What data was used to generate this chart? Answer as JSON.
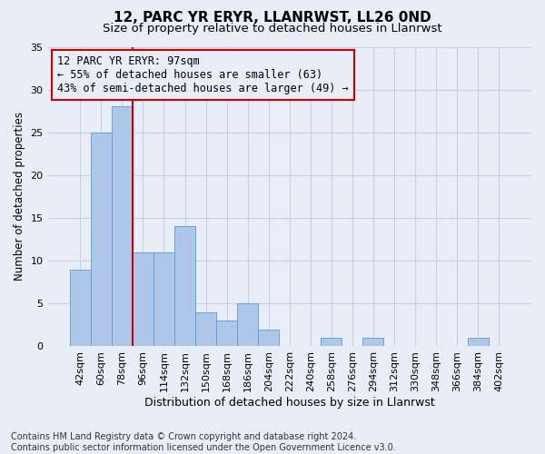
{
  "title1": "12, PARC YR ERYR, LLANRWST, LL26 0ND",
  "title2": "Size of property relative to detached houses in Llanrwst",
  "xlabel": "Distribution of detached houses by size in Llanrwst",
  "ylabel": "Number of detached properties",
  "categories": [
    "42sqm",
    "60sqm",
    "78sqm",
    "96sqm",
    "114sqm",
    "132sqm",
    "150sqm",
    "168sqm",
    "186sqm",
    "204sqm",
    "222sqm",
    "240sqm",
    "258sqm",
    "276sqm",
    "294sqm",
    "312sqm",
    "330sqm",
    "348sqm",
    "366sqm",
    "384sqm",
    "402sqm"
  ],
  "values": [
    9,
    25,
    28,
    11,
    11,
    14,
    4,
    3,
    5,
    2,
    0,
    0,
    1,
    0,
    1,
    0,
    0,
    0,
    0,
    1,
    0
  ],
  "bar_color": "#aec6e8",
  "bar_edge_color": "#5a9bd4",
  "vline_position": 2.5,
  "vline_color": "#cc0000",
  "annotation_text": "12 PARC YR ERYR: 97sqm\n← 55% of detached houses are smaller (63)\n43% of semi-detached houses are larger (49) →",
  "annotation_box_edgecolor": "#cc0000",
  "ylim": [
    0,
    35
  ],
  "yticks": [
    0,
    5,
    10,
    15,
    20,
    25,
    30,
    35
  ],
  "grid_color": "#c8d0e0",
  "background_color": "#e8eef8",
  "footer": "Contains HM Land Registry data © Crown copyright and database right 2024.\nContains public sector information licensed under the Open Government Licence v3.0.",
  "title1_fontsize": 11,
  "title2_fontsize": 9.5,
  "xlabel_fontsize": 9,
  "ylabel_fontsize": 8.5,
  "annotation_fontsize": 8.5,
  "footer_fontsize": 7,
  "tick_fontsize": 8
}
